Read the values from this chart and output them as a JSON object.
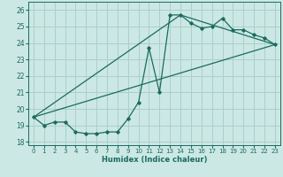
{
  "xlabel": "Humidex (Indice chaleur)",
  "background_color": "#cce8e4",
  "grid_color": "#aacfcb",
  "line_color": "#1a6b60",
  "xlim": [
    -0.5,
    23.5
  ],
  "ylim": [
    17.8,
    26.5
  ],
  "yticks": [
    18,
    19,
    20,
    21,
    22,
    23,
    24,
    25,
    26
  ],
  "xticks": [
    0,
    1,
    2,
    3,
    4,
    5,
    6,
    7,
    8,
    9,
    10,
    11,
    12,
    13,
    14,
    15,
    16,
    17,
    18,
    19,
    20,
    21,
    22,
    23
  ],
  "series1_x": [
    0,
    1,
    2,
    3,
    4,
    5,
    6,
    7,
    8,
    9,
    10,
    11,
    12,
    13,
    14,
    15,
    16,
    17,
    18,
    19,
    20,
    21,
    22,
    23
  ],
  "series1_y": [
    19.5,
    19.0,
    19.2,
    19.2,
    18.6,
    18.5,
    18.5,
    18.6,
    18.6,
    19.4,
    20.4,
    23.7,
    21.0,
    25.7,
    25.7,
    25.2,
    24.9,
    25.0,
    25.5,
    24.8,
    24.8,
    24.5,
    24.3,
    23.9
  ],
  "series2_x": [
    0,
    23
  ],
  "series2_y": [
    19.5,
    23.9
  ],
  "series3_x": [
    0,
    14,
    23
  ],
  "series3_y": [
    19.5,
    25.7,
    23.9
  ]
}
